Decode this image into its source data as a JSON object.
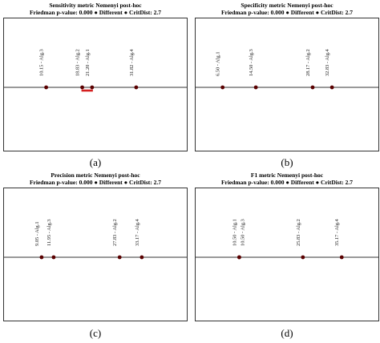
{
  "panels": [
    {
      "title": "Sensitivity metric Nemenyi post-hoc",
      "subtitle": "Friedman p-value: 0.000 ● Different ● CritDist: 2.7",
      "caption": "(a)"
    },
    {
      "title": "Specificity metric Nemenyi post-hoc",
      "subtitle": "Friedman p-value: 0.000 ● Different ● CritDist: 2.7",
      "caption": "(b)"
    },
    {
      "title": "Precision metric Nemenyi post-hoc",
      "subtitle": "Friedman p-value: 0.000 ● Different ● CritDist: 2.7",
      "caption": "(c)"
    },
    {
      "title": "F1 metric Nemenyi post-hoc",
      "subtitle": "Friedman p-value: 0.000 ● Different ● CritDist: 2.7",
      "caption": "(d)"
    }
  ],
  "chart_data": [
    {
      "type": "scatter",
      "title": "Sensitivity metric Nemenyi post-hoc",
      "subtitle": "Friedman p-value: 0.000 ● Different ● CritDist: 2.7",
      "points": [
        {
          "label": "Alg.3",
          "rank": 10.15,
          "text": "10.15 - Alg.3"
        },
        {
          "label": "Alg.2",
          "rank": 18.83,
          "text": "18.83 - Alg.2"
        },
        {
          "label": "Alg.1",
          "rank": 21.2,
          "text": "21.20 - Alg.1"
        },
        {
          "label": "Alg.4",
          "rank": 31.82,
          "text": "31.82 - Alg.4"
        }
      ],
      "groups": [
        [
          "Alg.2",
          "Alg.1"
        ]
      ],
      "xlim": [
        0,
        44
      ],
      "colors": {
        "point": "#5a0000",
        "group_bar": "#d42020",
        "axis": "#333333"
      }
    },
    {
      "type": "scatter",
      "title": "Specificity metric Nemenyi post-hoc",
      "subtitle": "Friedman p-value: 0.000 ● Different ● CritDist: 2.7",
      "points": [
        {
          "label": "Alg.1",
          "rank": 6.5,
          "text": "6.50 - Alg.1"
        },
        {
          "label": "Alg.3",
          "rank": 14.5,
          "text": "14.50 - Alg.3"
        },
        {
          "label": "Alg.2",
          "rank": 28.17,
          "text": "28.17 - Alg.2"
        },
        {
          "label": "Alg.4",
          "rank": 32.83,
          "text": "32.83 - Alg.4"
        }
      ],
      "groups": [],
      "xlim": [
        0,
        44
      ],
      "colors": {
        "point": "#5a0000",
        "group_bar": "#d42020",
        "axis": "#333333"
      }
    },
    {
      "type": "scatter",
      "title": "Precision metric Nemenyi post-hoc",
      "subtitle": "Friedman p-value: 0.000 ● Different ● CritDist: 2.7",
      "points": [
        {
          "label": "Alg.1",
          "rank": 9.05,
          "text": "9.05 - Alg.1"
        },
        {
          "label": "Alg.3",
          "rank": 11.95,
          "text": "11.95 - Alg.3"
        },
        {
          "label": "Alg.2",
          "rank": 27.83,
          "text": "27.83 - Alg.2"
        },
        {
          "label": "Alg.4",
          "rank": 33.17,
          "text": "33.17 - Alg.4"
        }
      ],
      "groups": [],
      "xlim": [
        0,
        44
      ],
      "colors": {
        "point": "#5a0000",
        "group_bar": "#d42020",
        "axis": "#333333"
      }
    },
    {
      "type": "scatter",
      "title": "F1 metric Nemenyi post-hoc",
      "subtitle": "Friedman p-value: 0.000 ● Different ● CritDist: 2.7",
      "points": [
        {
          "label": "Alg.1",
          "rank": 10.5,
          "text": "10.50 - Alg.1"
        },
        {
          "label": "Alg.3",
          "rank": 10.5,
          "text": "10.50 - Alg.3"
        },
        {
          "label": "Alg.2",
          "rank": 25.83,
          "text": "25.83 - Alg.2"
        },
        {
          "label": "Alg.4",
          "rank": 35.17,
          "text": "35.17 - Alg.4"
        }
      ],
      "groups": [],
      "xlim": [
        0,
        44
      ],
      "colors": {
        "point": "#5a0000",
        "group_bar": "#d42020",
        "axis": "#333333"
      }
    }
  ]
}
